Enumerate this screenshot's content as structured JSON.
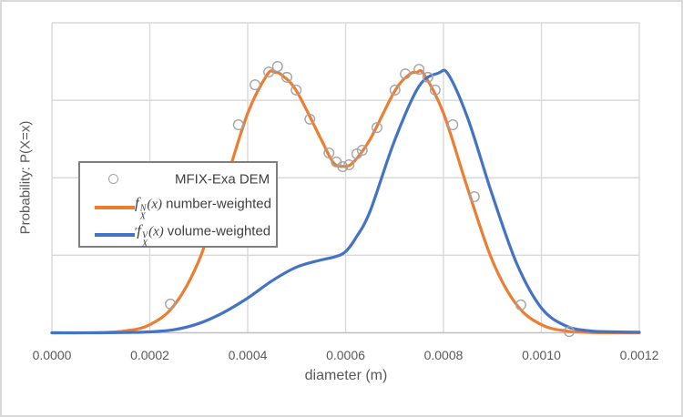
{
  "chart": {
    "y_axis_title": "Probability: P(X=x)",
    "x_axis_title": "diameter (m)",
    "x_tick_labels": [
      "0.0000",
      "0.0002",
      "0.0004",
      "0.0006",
      "0.0008",
      "0.0010",
      "0.0012"
    ],
    "colors": {
      "number_weighted_line": "#ED7D31",
      "volume_weighted_line": "#4472C4",
      "scatter_marker": "#A5A5A5",
      "gridline": "#D9D9D9",
      "axis_line": "#BFBFBF",
      "axis_text": "#595959",
      "legend_border": "#7F7F7F"
    },
    "legend": {
      "items": [
        {
          "lead": "",
          "label": "MFIX-Exa DEM"
        },
        {
          "lead": "",
          "math_f": "f",
          "math_sup": "N",
          "math_sub": "X",
          "math_arg": "(x)",
          "label": "number-weighted"
        },
        {
          "lead": "′",
          "math_f": "f",
          "math_sup": "V",
          "math_sub": "X",
          "math_arg": "(x)",
          "label": "volume-weighted"
        }
      ]
    }
  },
  "chart_data": {
    "type": "line",
    "title": "",
    "xlabel": "diameter (m)",
    "ylabel": "Probability: P(X=x)",
    "xlim": [
      0,
      0.0012
    ],
    "ylim": [
      0,
      1.0
    ],
    "x_ticks": [
      0,
      0.0002,
      0.0004,
      0.0006,
      0.0008,
      0.001,
      0.0012
    ],
    "y_gridlines": [
      0,
      0.25,
      0.5,
      0.75,
      1.0
    ],
    "y_tick_labels_shown": false,
    "y_units_note": "y values normalized: 1.0 = top gridline of plot",
    "grid": true,
    "legend_position": "inside center-left",
    "series": [
      {
        "name": "MFIX-Exa DEM",
        "type": "scatter",
        "marker": "open-circle",
        "color": "#A5A5A5",
        "points": [
          [
            0.000242,
            0.093
          ],
          [
            0.000381,
            0.671
          ],
          [
            0.000415,
            0.8
          ],
          [
            0.000443,
            0.841
          ],
          [
            0.000461,
            0.859
          ],
          [
            0.00048,
            0.824
          ],
          [
            0.000499,
            0.783
          ],
          [
            0.000527,
            0.689
          ],
          [
            0.000566,
            0.58
          ],
          [
            0.000581,
            0.551
          ],
          [
            0.000594,
            0.536
          ],
          [
            0.000607,
            0.542
          ],
          [
            0.000623,
            0.577
          ],
          [
            0.000634,
            0.589
          ],
          [
            0.000664,
            0.662
          ],
          [
            0.000701,
            0.783
          ],
          [
            0.000722,
            0.835
          ],
          [
            0.00075,
            0.85
          ],
          [
            0.000768,
            0.824
          ],
          [
            0.000783,
            0.783
          ],
          [
            0.000819,
            0.671
          ],
          [
            0.000863,
            0.439
          ],
          [
            0.000958,
            0.09
          ],
          [
            0.001057,
            0.004
          ]
        ]
      },
      {
        "name": "f_X^N(x) number-weighted",
        "type": "line",
        "color": "#ED7D31",
        "points": [
          [
            0.0,
            0.0
          ],
          [
            5e-05,
            0.0
          ],
          [
            0.0001,
            0.001
          ],
          [
            0.00015,
            0.006
          ],
          [
            0.0002,
            0.026
          ],
          [
            0.00025,
            0.089
          ],
          [
            0.0003,
            0.232
          ],
          [
            0.00035,
            0.462
          ],
          [
            0.0004,
            0.708
          ],
          [
            0.00044,
            0.833
          ],
          [
            0.000455,
            0.84
          ],
          [
            0.00047,
            0.831
          ],
          [
            0.0005,
            0.779
          ],
          [
            0.00055,
            0.624
          ],
          [
            0.000575,
            0.549
          ],
          [
            0.000595,
            0.537
          ],
          [
            0.000615,
            0.549
          ],
          [
            0.00065,
            0.624
          ],
          [
            0.0007,
            0.779
          ],
          [
            0.00073,
            0.833
          ],
          [
            0.000745,
            0.84
          ],
          [
            0.00076,
            0.834
          ],
          [
            0.0008,
            0.708
          ],
          [
            0.00085,
            0.462
          ],
          [
            0.0009,
            0.232
          ],
          [
            0.00095,
            0.089
          ],
          [
            0.001,
            0.026
          ],
          [
            0.00105,
            0.006
          ],
          [
            0.0011,
            0.001
          ],
          [
            0.00115,
            0.0
          ],
          [
            0.0012,
            0.0
          ]
        ]
      },
      {
        "name": "f_X^V(x) volume-weighted",
        "type": "line",
        "color": "#4472C4",
        "points": [
          [
            0.0,
            0.0
          ],
          [
            0.0001,
            0.0
          ],
          [
            0.00015,
            0.001
          ],
          [
            0.0002,
            0.003
          ],
          [
            0.00025,
            0.01
          ],
          [
            0.0003,
            0.03
          ],
          [
            0.00035,
            0.065
          ],
          [
            0.0004,
            0.112
          ],
          [
            0.00045,
            0.168
          ],
          [
            0.0005,
            0.212
          ],
          [
            0.00055,
            0.235
          ],
          [
            0.00058,
            0.246
          ],
          [
            0.0006,
            0.262
          ],
          [
            0.00062,
            0.304
          ],
          [
            0.00065,
            0.392
          ],
          [
            0.0007,
            0.62
          ],
          [
            0.00075,
            0.795
          ],
          [
            0.00079,
            0.838
          ],
          [
            0.00081,
            0.833
          ],
          [
            0.00085,
            0.69
          ],
          [
            0.0009,
            0.443
          ],
          [
            0.00095,
            0.222
          ],
          [
            0.001,
            0.08
          ],
          [
            0.00105,
            0.022
          ],
          [
            0.0011,
            0.006
          ],
          [
            0.00115,
            0.003
          ],
          [
            0.0012,
            0.002
          ]
        ]
      }
    ]
  }
}
